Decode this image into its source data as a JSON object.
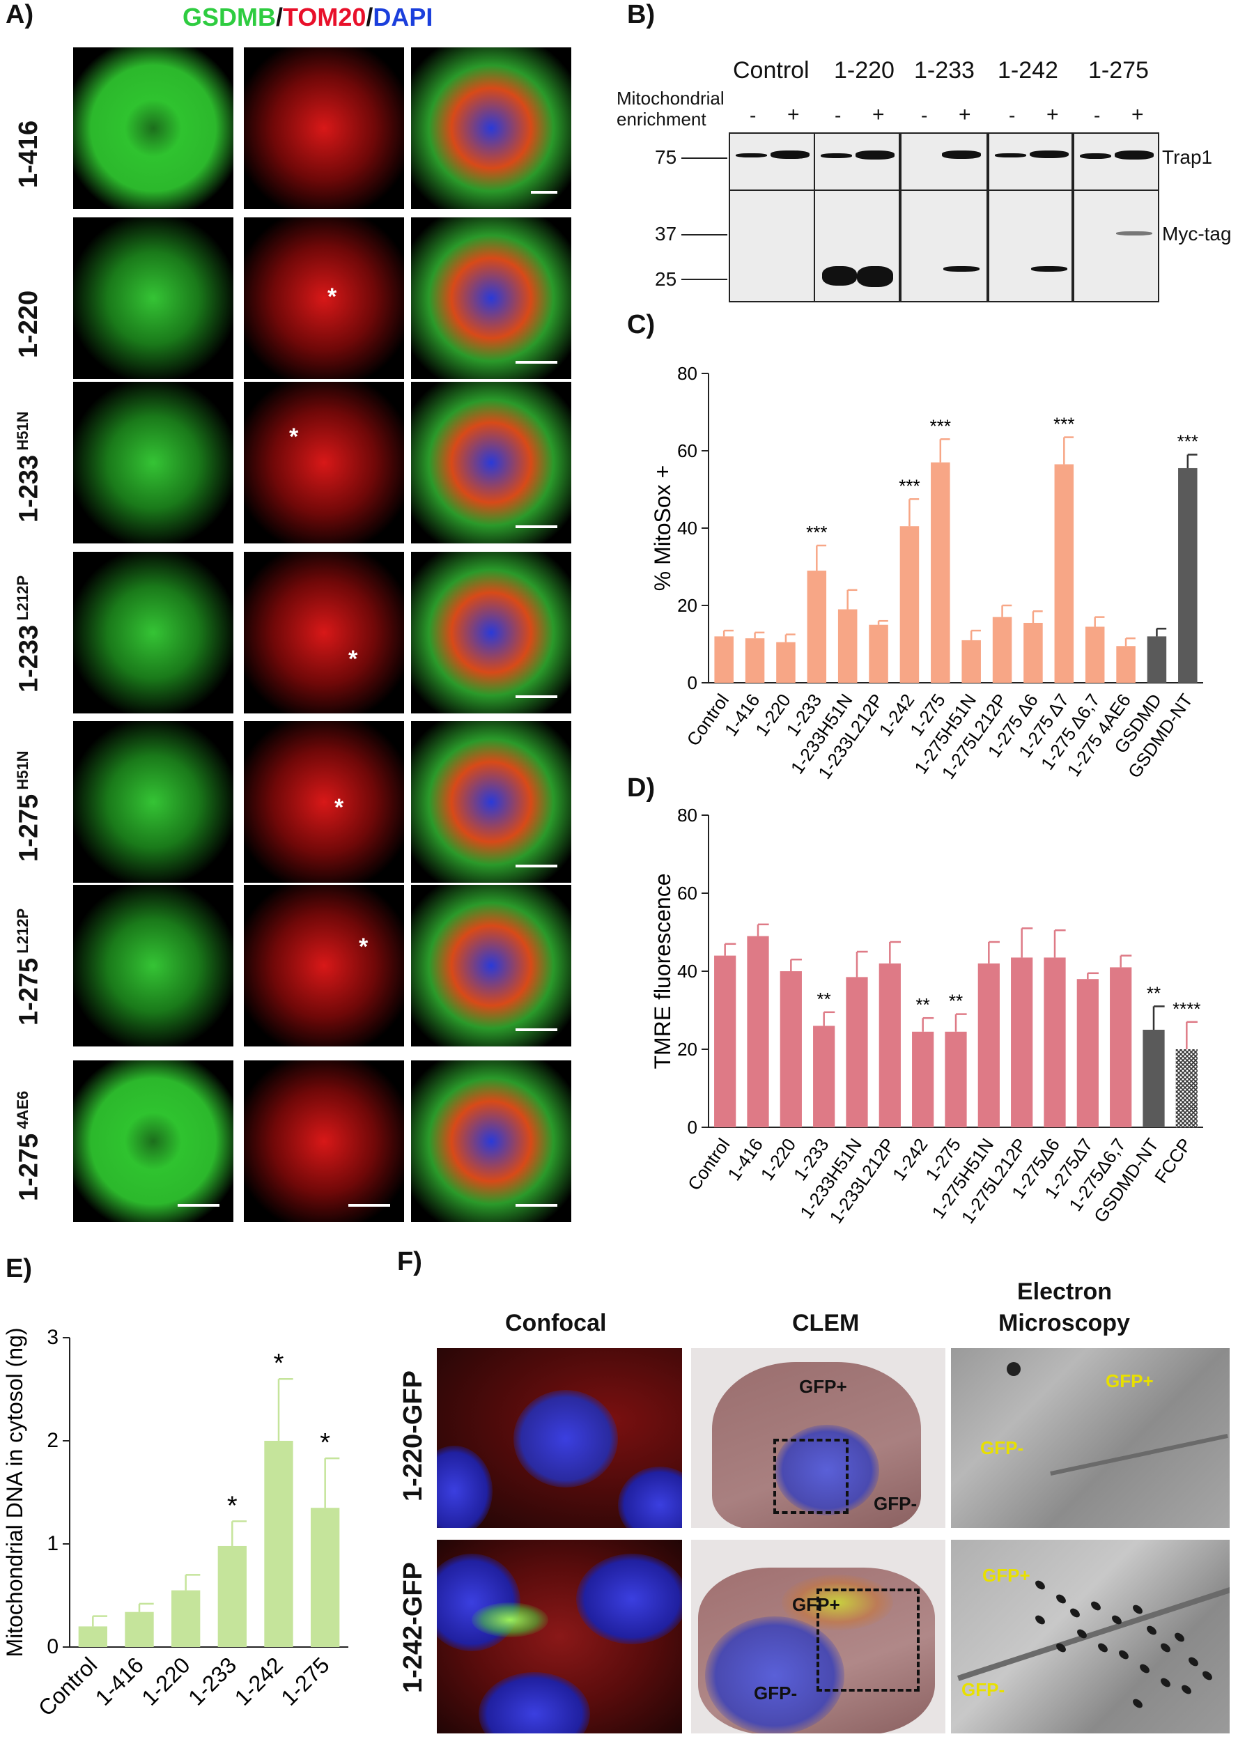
{
  "panelA": {
    "label": "A)",
    "header": {
      "g": "GSDMB",
      "slash1": "/",
      "t": "TOM20",
      "slash2": "/",
      "d": "DAPI"
    },
    "rows": [
      {
        "main": "1-416",
        "sup": ""
      },
      {
        "main": "1-220",
        "sup": ""
      },
      {
        "main": "1-233",
        "sup": "H51N"
      },
      {
        "main": "1-233",
        "sup": "L212P"
      },
      {
        "main": "1-275",
        "sup": "H51N"
      },
      {
        "main": "1-275",
        "sup": "L212P"
      },
      {
        "main": "1-275",
        "sup": "4AE6"
      }
    ],
    "asterisk": "*"
  },
  "panelB": {
    "label": "B)",
    "groups": [
      "Control",
      "1-220",
      "1-233",
      "1-242",
      "1-275"
    ],
    "enrichment_label_1": "Mitochondrial",
    "enrichment_label_2": "enrichment",
    "minus": "-",
    "plus": "+",
    "markers": [
      "75",
      "37",
      "25"
    ],
    "bands": [
      "Trap1",
      "Myc-tag"
    ]
  },
  "panelC": {
    "label": "C)",
    "chart_data": {
      "type": "bar",
      "ylabel": "% MitoSox +",
      "ylim": [
        0,
        80
      ],
      "yticks": [
        "0",
        "20",
        "40",
        "60",
        "80"
      ],
      "categories": [
        "Control",
        "1-416",
        "1-220",
        "1-233",
        "1-233H51N",
        "1-233L212P",
        "1-242",
        "1-275",
        "1-275H51N",
        "1-275L212P",
        "1-275 Δ6",
        "1-275 Δ7",
        "1-275 Δ6,7",
        "1-275 4AE6",
        "GSDMD",
        "GSDMD-NT"
      ],
      "values": [
        12,
        11.5,
        10.5,
        29,
        19,
        15,
        40.5,
        57,
        11,
        17,
        15.5,
        56.5,
        14.5,
        9.5,
        12,
        55.5
      ],
      "errors": [
        1.5,
        1.5,
        2,
        6.5,
        5,
        1,
        7,
        6,
        2.5,
        3,
        3,
        7,
        2.5,
        2,
        2,
        3.5
      ],
      "significance": [
        "",
        "",
        "",
        "***",
        "",
        "",
        "***",
        "***",
        "",
        "",
        "",
        "***",
        "",
        "",
        "",
        "***"
      ],
      "colors": {
        "main": "#f7a686",
        "dark": "#5a5a5a"
      }
    }
  },
  "panelD": {
    "label": "D)",
    "chart_data": {
      "type": "bar",
      "ylabel": "TMRE fluorescence",
      "ylim": [
        0,
        80
      ],
      "yticks": [
        "0",
        "20",
        "40",
        "60",
        "80"
      ],
      "categories": [
        "Control",
        "1-416",
        "1-220",
        "1-233",
        "1-233H51N",
        "1-233L212P",
        "1-242",
        "1-275",
        "1-275H51N",
        "1-275L212P",
        "1-275Δ6",
        "1-275Δ7",
        "1-275Δ6,7",
        "GSDMD-NT",
        "FCCP"
      ],
      "values": [
        44,
        49,
        40,
        26,
        38.5,
        42,
        24.5,
        24.5,
        42,
        43.5,
        43.5,
        38,
        41,
        25,
        20
      ],
      "errors": [
        3,
        3,
        3,
        3.5,
        6.5,
        5.5,
        3.5,
        4.5,
        5.5,
        7.5,
        7,
        1.5,
        3,
        6,
        7
      ],
      "significance": [
        "",
        "",
        "",
        "**",
        "",
        "",
        "**",
        "**",
        "",
        "",
        "",
        "",
        "",
        "**",
        "****"
      ],
      "colors": {
        "main": "#de7a86",
        "dark": "#5a5a5a"
      }
    }
  },
  "panelE": {
    "label": "E)",
    "chart_data": {
      "type": "bar",
      "ylabel": "Mitochondrial DNA in cytosol (ng)",
      "ylim": [
        0,
        3
      ],
      "yticks": [
        "0",
        "1",
        "2",
        "3"
      ],
      "categories": [
        "Control",
        "1-416",
        "1-220",
        "1-233",
        "1-242",
        "1-275"
      ],
      "values": [
        0.2,
        0.34,
        0.55,
        0.98,
        2.0,
        1.35
      ],
      "errors": [
        0.1,
        0.08,
        0.15,
        0.24,
        0.6,
        0.48
      ],
      "significance": [
        "",
        "",
        "",
        "*",
        "*",
        "*"
      ],
      "colors": {
        "main": "#c5e49b"
      }
    }
  },
  "panelF": {
    "label": "F)",
    "col_confocal": "Confocal",
    "col_clem": "CLEM",
    "col_em_1": "Electron",
    "col_em_2": "Microscopy",
    "rows": [
      "1-220-GFP",
      "1-242-GFP"
    ],
    "gfp_plus": "GFP+",
    "gfp_minus": "GFP-"
  }
}
